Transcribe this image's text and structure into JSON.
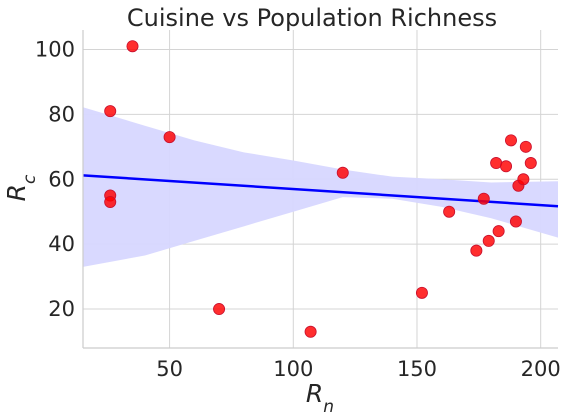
{
  "chart_data": {
    "type": "scatter",
    "title": "Cuisine vs Population Richness",
    "xlabel": {
      "base": "R",
      "sub": "n"
    },
    "ylabel": {
      "base": "R",
      "sub": "c"
    },
    "xlim": [
      15,
      207
    ],
    "ylim": [
      8,
      106
    ],
    "xticks": [
      50,
      100,
      150,
      200
    ],
    "yticks": [
      20,
      40,
      60,
      80,
      100
    ],
    "grid": true,
    "colors": {
      "points": "#ff0000",
      "point_edge": "#c8102e",
      "fit_line": "#0000ff",
      "confidence_band": "#d7d7ff",
      "grid": "#d4d4d4",
      "axis": "#cccccc"
    },
    "points": [
      {
        "x": 35,
        "y": 101
      },
      {
        "x": 26,
        "y": 81
      },
      {
        "x": 26,
        "y": 55
      },
      {
        "x": 26,
        "y": 53
      },
      {
        "x": 50,
        "y": 73
      },
      {
        "x": 70,
        "y": 20
      },
      {
        "x": 107,
        "y": 13
      },
      {
        "x": 120,
        "y": 62
      },
      {
        "x": 152,
        "y": 25
      },
      {
        "x": 163,
        "y": 50
      },
      {
        "x": 174,
        "y": 38
      },
      {
        "x": 177,
        "y": 54
      },
      {
        "x": 179,
        "y": 41
      },
      {
        "x": 182,
        "y": 65
      },
      {
        "x": 183,
        "y": 44
      },
      {
        "x": 186,
        "y": 64
      },
      {
        "x": 188,
        "y": 72
      },
      {
        "x": 190,
        "y": 47
      },
      {
        "x": 191,
        "y": 58
      },
      {
        "x": 193,
        "y": 60
      },
      {
        "x": 194,
        "y": 70
      },
      {
        "x": 196,
        "y": 65
      }
    ],
    "fit_line": {
      "x": [
        15,
        207
      ],
      "y": [
        61.2,
        51.7
      ]
    },
    "confidence_band": {
      "x": [
        15,
        40,
        60,
        80,
        100,
        120,
        140,
        160,
        180,
        207
      ],
      "upper": [
        82.2,
        76.5,
        72.0,
        68.3,
        65.8,
        63.0,
        60.8,
        60.0,
        59.0,
        59.4
      ],
      "lower": [
        33.0,
        36.5,
        41.0,
        45.5,
        50.0,
        54.5,
        54.0,
        51.5,
        48.0,
        42.0
      ]
    }
  }
}
